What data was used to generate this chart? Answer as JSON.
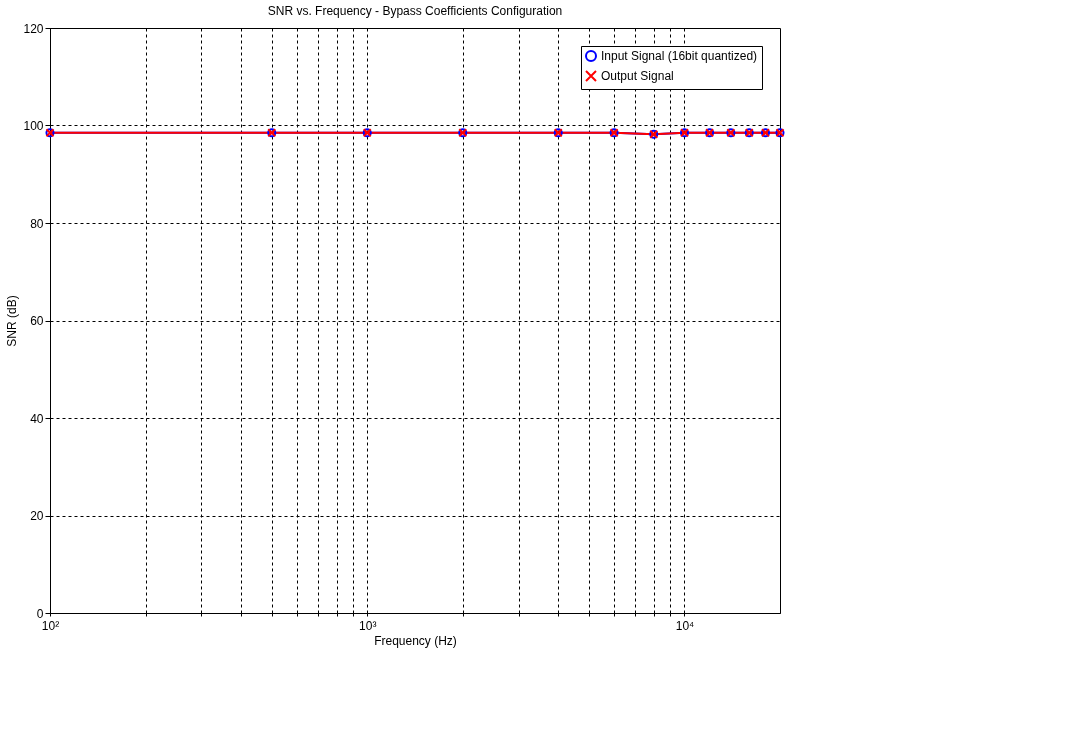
{
  "chart_data": {
    "type": "line",
    "title": "SNR vs. Frequency - Bypass Coefficients Configuration",
    "xlabel": "Frequency (Hz)",
    "ylabel": "SNR (dB)",
    "x": [
      100,
      500,
      1000,
      2000,
      4000,
      6000,
      8000,
      10000,
      12000,
      14000,
      16000,
      18000,
      20000
    ],
    "series": [
      {
        "name": "Input Signal (16bit quantized)",
        "color": "#0000ff",
        "marker": "circle",
        "values": [
          98.5,
          98.5,
          98.5,
          98.5,
          98.5,
          98.5,
          98.2,
          98.5,
          98.5,
          98.5,
          98.5,
          98.5,
          98.5
        ]
      },
      {
        "name": "Output Signal",
        "color": "#ff0000",
        "marker": "cross",
        "values": [
          98.5,
          98.5,
          98.5,
          98.5,
          98.5,
          98.5,
          98.2,
          98.5,
          98.5,
          98.5,
          98.5,
          98.5,
          98.5
        ]
      }
    ],
    "log": "x",
    "xlim": [
      100,
      20000
    ],
    "xticks": [
      {
        "value": 100,
        "label": "10²"
      },
      {
        "value": 200,
        "label": null
      },
      {
        "value": 300,
        "label": null
      },
      {
        "value": 400,
        "label": null
      },
      {
        "value": 500,
        "label": null
      },
      {
        "value": 600,
        "label": null
      },
      {
        "value": 700,
        "label": null
      },
      {
        "value": 800,
        "label": null
      },
      {
        "value": 900,
        "label": null
      },
      {
        "value": 1000,
        "label": "10³"
      },
      {
        "value": 2000,
        "label": null
      },
      {
        "value": 3000,
        "label": null
      },
      {
        "value": 4000,
        "label": null
      },
      {
        "value": 5000,
        "label": null
      },
      {
        "value": 6000,
        "label": null
      },
      {
        "value": 7000,
        "label": null
      },
      {
        "value": 8000,
        "label": null
      },
      {
        "value": 9000,
        "label": null
      },
      {
        "value": 10000,
        "label": "10⁴"
      }
    ],
    "ylim": [
      0,
      120
    ],
    "yticks": [
      0,
      20,
      40,
      60,
      80,
      100,
      120
    ],
    "grid": true,
    "legend": "top right",
    "line_style": "solid"
  }
}
